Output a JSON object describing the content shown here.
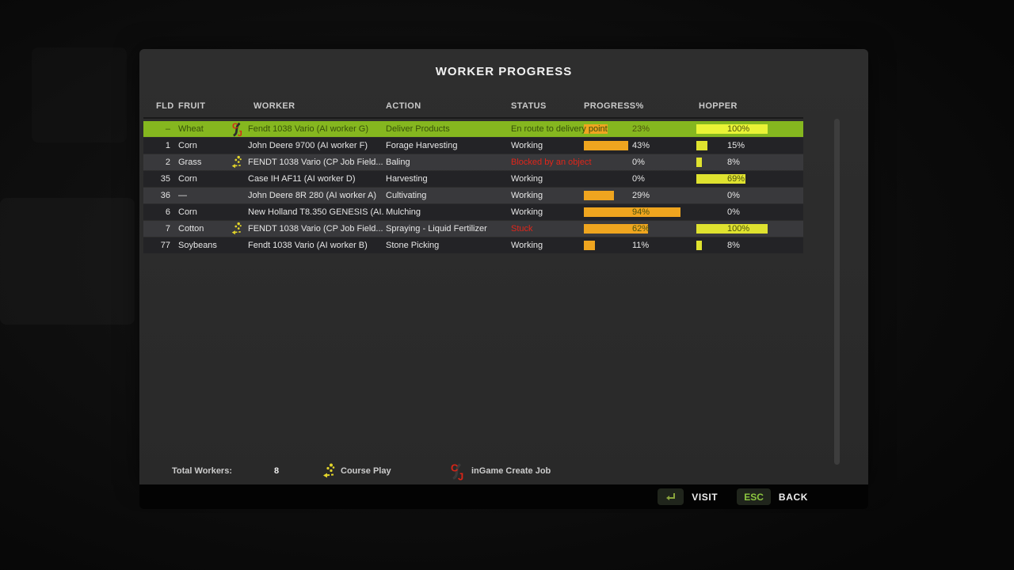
{
  "title": "WORKER PROGRESS",
  "columns": {
    "fld": "FLD",
    "fruit": "FRUIT",
    "worker": "WORKER",
    "action": "ACTION",
    "status": "STATUS",
    "progress": "PROGRESS%",
    "hopper": "HOPPER"
  },
  "rows": [
    {
      "fld": "–",
      "fruit": "Wheat",
      "icon": "ingame-create-job",
      "worker": "Fendt 1038 Vario (AI worker G)",
      "action": "Deliver Products",
      "status": "En route to delivery point",
      "progress_pct": 23,
      "progress_label": "23%",
      "hopper_pct": 100,
      "hopper_label": "100%"
    },
    {
      "fld": "1",
      "fruit": "Corn",
      "icon": "",
      "worker": "John Deere 9700 (AI worker F)",
      "action": "Forage Harvesting",
      "status": "Working",
      "progress_pct": 43,
      "progress_label": "43%",
      "hopper_pct": 15,
      "hopper_label": "15%"
    },
    {
      "fld": "2",
      "fruit": "Grass",
      "icon": "courseplay",
      "worker": "FENDT 1038 Vario  (CP Job Field...",
      "action": "Baling",
      "status": "Blocked by an object",
      "progress_pct": 0,
      "progress_label": "0%",
      "hopper_pct": 8,
      "hopper_label": "8%"
    },
    {
      "fld": "35",
      "fruit": "Corn",
      "icon": "",
      "worker": "Case IH AF11 (AI worker D)",
      "action": "Harvesting",
      "status": "Working",
      "progress_pct": 0,
      "progress_label": "0%",
      "hopper_pct": 69,
      "hopper_label": "69%"
    },
    {
      "fld": "36",
      "fruit": "—",
      "icon": "",
      "worker": "John Deere 8R 280 (AI worker A)",
      "action": "Cultivating",
      "status": "Working",
      "progress_pct": 29,
      "progress_label": "29%",
      "hopper_pct": 0,
      "hopper_label": "0%"
    },
    {
      "fld": "6",
      "fruit": "Corn",
      "icon": "",
      "worker": "New Holland T8.350 GENESIS (AI...",
      "action": "Mulching",
      "status": "Working",
      "progress_pct": 94,
      "progress_label": "94%",
      "hopper_pct": 0,
      "hopper_label": "0%"
    },
    {
      "fld": "7",
      "fruit": "Cotton",
      "icon": "courseplay",
      "worker": "FENDT 1038 Vario  (CP Job Field...",
      "action": "Spraying - Liquid Fertilizer",
      "status": "Stuck",
      "progress_pct": 62,
      "progress_label": "62%",
      "hopper_pct": 100,
      "hopper_label": "100%"
    },
    {
      "fld": "77",
      "fruit": "Soybeans",
      "icon": "",
      "worker": "Fendt 1038 Vario (AI worker B)",
      "action": "Stone Picking",
      "status": "Working",
      "progress_pct": 11,
      "progress_label": "11%",
      "hopper_pct": 8,
      "hopper_label": "8%"
    }
  ],
  "footer": {
    "total_workers_label": "Total Workers:",
    "total_workers_value": "8",
    "courseplay_label": "Course Play",
    "create_job_label": "inGame Create Job"
  },
  "bottombar": {
    "visit_label": "VISIT",
    "esc_key": "ESC",
    "back_label": "BACK"
  },
  "colors": {
    "selected_row": "#85b71f",
    "progress_bar": "#efa51f",
    "hopper_bar": "#dfe22f",
    "alert_text": "#e0251a",
    "accent_green": "#8cc63f"
  }
}
